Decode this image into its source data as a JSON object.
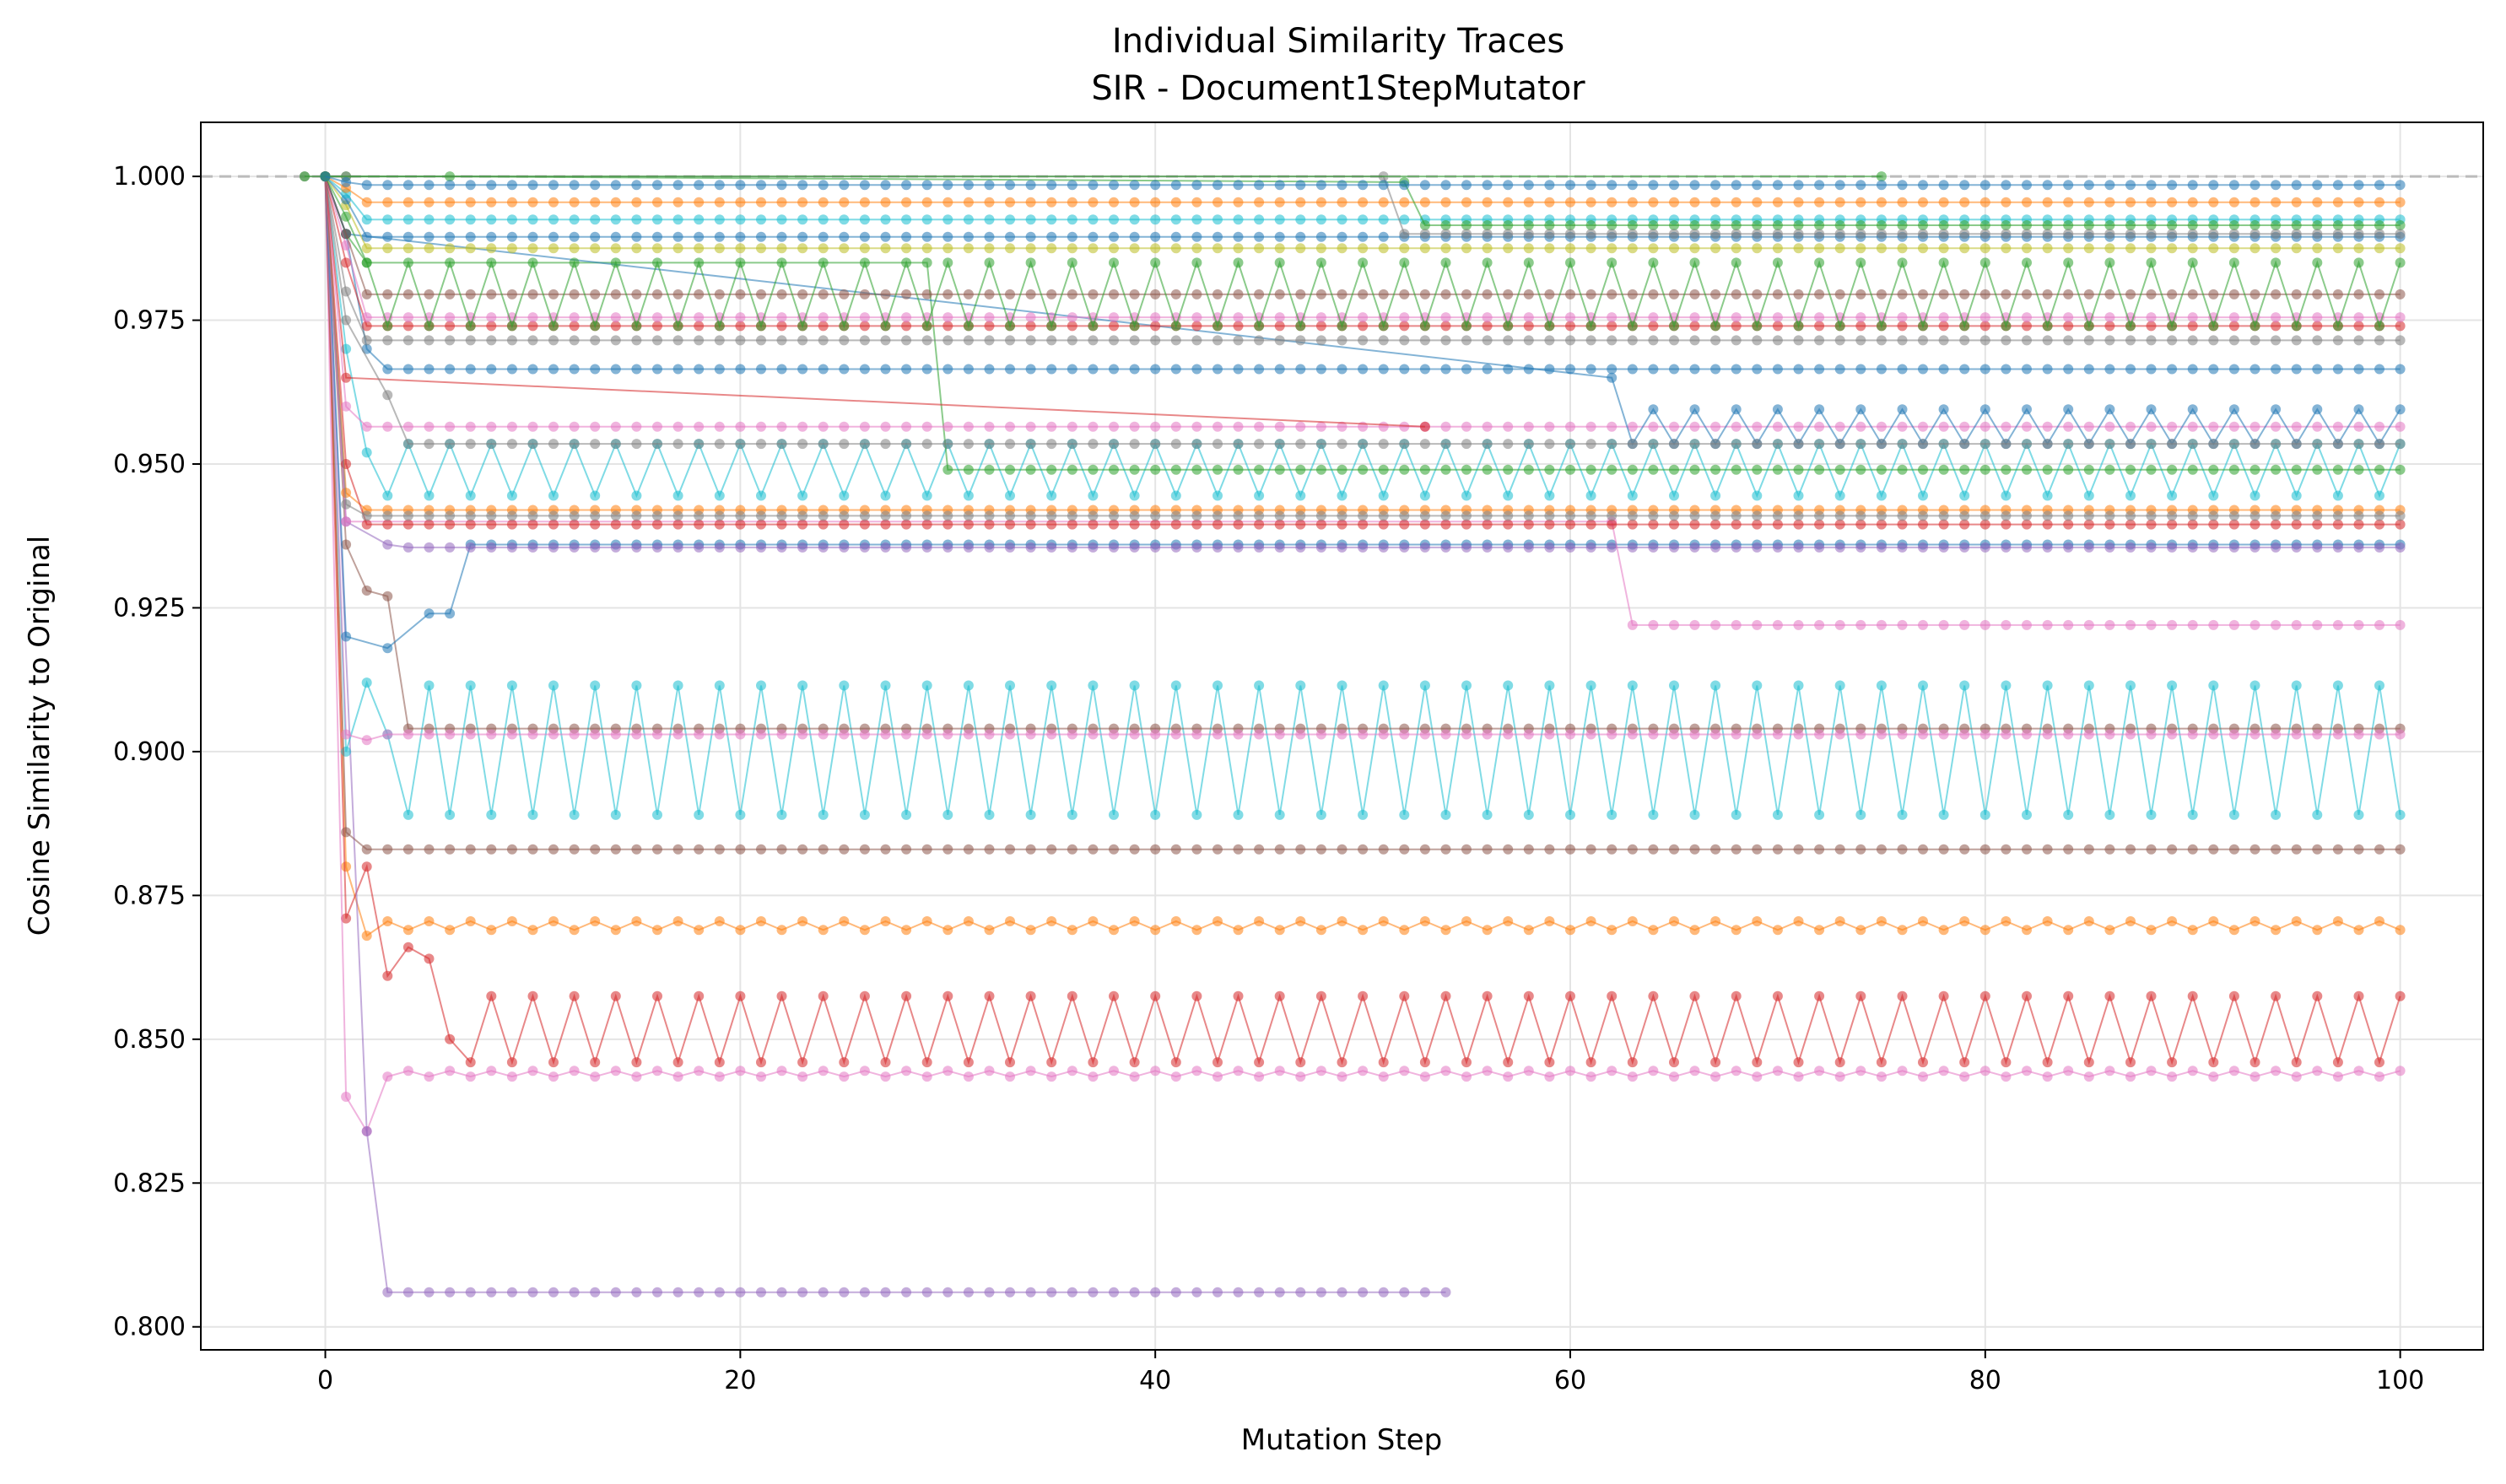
{
  "chart_data": {
    "type": "line",
    "title": "Individual Similarity Traces",
    "subtitle": "SIR - Document1StepMutator",
    "xlabel": "Mutation Step",
    "ylabel": "Cosine Similarity to Original",
    "xlim": [
      -6,
      104
    ],
    "ylim": [
      0.796,
      1.0094
    ],
    "xticks": [
      0,
      20,
      40,
      60,
      80,
      100
    ],
    "yticks": [
      0.8,
      0.825,
      0.85,
      0.875,
      0.9,
      0.925,
      0.95,
      0.975,
      1.0
    ],
    "ytick_labels": [
      "0.800",
      "0.825",
      "0.850",
      "0.875",
      "0.900",
      "0.925",
      "0.950",
      "0.975",
      "1.000"
    ],
    "grid": true,
    "reference_line": {
      "y": 1.0,
      "style": "dashed",
      "color": "#bbbbbb"
    },
    "x_end": 100,
    "series": [
      {
        "color": "#1f77b4",
        "init": [
          [
            0,
            1.0
          ],
          [
            1,
            0.99
          ],
          [
            2,
            0.97
          ]
        ],
        "pattern": [
          0.9665,
          0.9665
        ]
      },
      {
        "color": "#ff7f0e",
        "init": [
          [
            0,
            1.0
          ],
          [
            1,
            0.88
          ],
          [
            2,
            0.868
          ]
        ],
        "pattern": [
          0.8705,
          0.869
        ]
      },
      {
        "color": "#d62728",
        "init": [
          [
            0,
            1.0
          ],
          [
            1,
            0.871
          ],
          [
            2,
            0.88
          ],
          [
            3,
            0.861
          ],
          [
            4,
            0.866
          ],
          [
            5,
            0.864
          ],
          [
            6,
            0.85
          ]
        ],
        "pattern": [
          0.846,
          0.8575
        ]
      },
      {
        "color": "#e377c2",
        "init": [
          [
            0,
            1.0
          ],
          [
            1,
            0.84
          ],
          [
            2,
            0.834
          ]
        ],
        "pattern": [
          0.8435,
          0.8445
        ]
      },
      {
        "color": "#9467bd",
        "init": [
          [
            0,
            1.0
          ],
          [
            2,
            0.834
          ],
          [
            3,
            0.806
          ]
        ],
        "pattern": [
          0.806,
          0.806
        ],
        "end": 54
      },
      {
        "color": "#17becf",
        "init": [
          [
            0,
            1.0
          ],
          [
            1,
            0.9
          ],
          [
            2,
            0.912
          ],
          [
            3,
            0.903
          ]
        ],
        "pattern": [
          0.889,
          0.9115
        ]
      },
      {
        "color": "#8c564b",
        "init": [
          [
            0,
            1.0
          ],
          [
            1,
            0.886
          ],
          [
            2,
            0.883
          ]
        ],
        "pattern": [
          0.883,
          0.883
        ]
      },
      {
        "color": "#8c564b",
        "init": [
          [
            0,
            1.0
          ],
          [
            1,
            0.936
          ],
          [
            2,
            0.928
          ],
          [
            3,
            0.927
          ],
          [
            4,
            0.904
          ]
        ],
        "pattern": [
          0.904,
          0.904
        ]
      },
      {
        "color": "#e377c2",
        "init": [
          [
            0,
            1.0
          ],
          [
            1,
            0.903
          ],
          [
            2,
            0.902
          ],
          [
            3,
            0.903
          ]
        ],
        "pattern": [
          0.903,
          0.903
        ]
      },
      {
        "color": "#1f77b4",
        "init": [
          [
            0,
            1.0
          ],
          [
            1,
            0.92
          ],
          [
            3,
            0.918
          ],
          [
            5,
            0.924
          ],
          [
            6,
            0.924
          ],
          [
            7,
            0.936
          ]
        ],
        "pattern": [
          0.936,
          0.936
        ]
      },
      {
        "color": "#9467bd",
        "init": [
          [
            0,
            1.0
          ],
          [
            1,
            0.94
          ],
          [
            3,
            0.936
          ]
        ],
        "pattern": [
          0.9355,
          0.9355
        ]
      },
      {
        "color": "#e377c2",
        "init": [
          [
            0,
            1.0
          ],
          [
            1,
            0.94
          ],
          [
            62,
            0.94
          ],
          [
            63,
            0.922
          ]
        ],
        "pattern": [
          0.922,
          0.922
        ]
      },
      {
        "color": "#ff7f0e",
        "init": [
          [
            0,
            1.0
          ],
          [
            1,
            0.945
          ]
        ],
        "pattern": [
          0.942,
          0.942
        ]
      },
      {
        "color": "#d62728",
        "init": [
          [
            0,
            1.0
          ],
          [
            1,
            0.95
          ]
        ],
        "pattern": [
          0.9395,
          0.9395
        ]
      },
      {
        "color": "#7f7f7f",
        "init": [
          [
            0,
            1.0
          ],
          [
            1,
            0.943
          ]
        ],
        "pattern": [
          0.941,
          0.941
        ]
      },
      {
        "color": "#17becf",
        "init": [
          [
            0,
            1.0
          ],
          [
            1,
            0.97
          ],
          [
            2,
            0.952
          ]
        ],
        "pattern": [
          0.9445,
          0.9535
        ]
      },
      {
        "color": "#2ca02c",
        "init": [
          [
            0,
            1.0
          ],
          [
            1,
            0.99
          ],
          [
            2,
            0.985
          ],
          [
            29,
            0.985
          ],
          [
            30,
            0.949
          ]
        ],
        "pattern": [
          0.949,
          0.949
        ]
      },
      {
        "color": "#e377c2",
        "init": [
          [
            0,
            1.0
          ],
          [
            1,
            0.96
          ]
        ],
        "pattern": [
          0.9565,
          0.9565
        ]
      },
      {
        "color": "#d62728",
        "init": [
          [
            0,
            1.0
          ],
          [
            1,
            0.965
          ],
          [
            53,
            0.9565
          ]
        ],
        "pattern": [
          0.9565,
          0.9565
        ],
        "end": 53
      },
      {
        "color": "#1f77b4",
        "init": [
          [
            0,
            1.0
          ],
          [
            1,
            0.99
          ],
          [
            62,
            0.965
          ]
        ],
        "pattern": [
          0.9535,
          0.9595
        ]
      },
      {
        "color": "#7f7f7f",
        "init": [
          [
            0,
            1.0
          ],
          [
            1,
            0.975
          ],
          [
            3,
            0.962
          ]
        ],
        "pattern": [
          0.9535,
          0.9535
        ]
      },
      {
        "color": "#7f7f7f",
        "init": [
          [
            0,
            1.0
          ],
          [
            1,
            0.98
          ]
        ],
        "pattern": [
          0.9715,
          0.9715
        ]
      },
      {
        "color": "#d62728",
        "init": [
          [
            0,
            1.0
          ],
          [
            1,
            0.985
          ]
        ],
        "pattern": [
          0.974,
          0.974
        ]
      },
      {
        "color": "#e377c2",
        "init": [
          [
            0,
            1.0
          ],
          [
            1,
            0.988
          ]
        ],
        "pattern": [
          0.9755,
          0.9755
        ]
      },
      {
        "color": "#8c564b",
        "init": [
          [
            0,
            1.0
          ],
          [
            1,
            0.99
          ]
        ],
        "pattern": [
          0.9795,
          0.9795
        ]
      },
      {
        "color": "#2ca02c",
        "init": [
          [
            0,
            1.0
          ],
          [
            1,
            0.993
          ]
        ],
        "pattern": [
          0.985,
          0.974
        ]
      },
      {
        "color": "#bcbd22",
        "init": [
          [
            0,
            1.0
          ],
          [
            1,
            0.995
          ]
        ],
        "pattern": [
          0.9875,
          0.9875
        ]
      },
      {
        "color": "#1f77b4",
        "init": [
          [
            0,
            1.0
          ],
          [
            1,
            0.996
          ]
        ],
        "pattern": [
          0.9895,
          0.9895
        ]
      },
      {
        "color": "#17becf",
        "init": [
          [
            0,
            1.0
          ],
          [
            1,
            0.997
          ]
        ],
        "pattern": [
          0.9925,
          0.9925
        ]
      },
      {
        "color": "#ff7f0e",
        "init": [
          [
            0,
            1.0
          ],
          [
            1,
            0.998
          ]
        ],
        "pattern": [
          0.9955,
          0.9955
        ]
      },
      {
        "color": "#2ca02c",
        "init": [
          [
            0,
            1.0
          ],
          [
            1,
            1.0
          ],
          [
            6,
            1.0
          ],
          [
            52,
            0.999
          ]
        ],
        "pattern": [
          0.9915,
          0.9915
        ]
      },
      {
        "color": "#7f7f7f",
        "init": [
          [
            -1,
            1.0
          ],
          [
            0,
            1.0
          ],
          [
            1,
            1.0
          ],
          [
            51,
            1.0
          ],
          [
            52,
            0.99
          ]
        ],
        "pattern": [
          0.99,
          0.99
        ]
      },
      {
        "color": "#2ca02c",
        "init": [
          [
            -1,
            1.0
          ],
          [
            0,
            1.0
          ],
          [
            75,
            1.0
          ]
        ],
        "pattern": [
          1.0,
          1.0
        ],
        "end": 75
      },
      {
        "color": "#1f77b4",
        "init": [
          [
            0,
            1.0
          ],
          [
            1,
            0.999
          ]
        ],
        "pattern": [
          0.9985,
          0.9985
        ]
      }
    ]
  }
}
